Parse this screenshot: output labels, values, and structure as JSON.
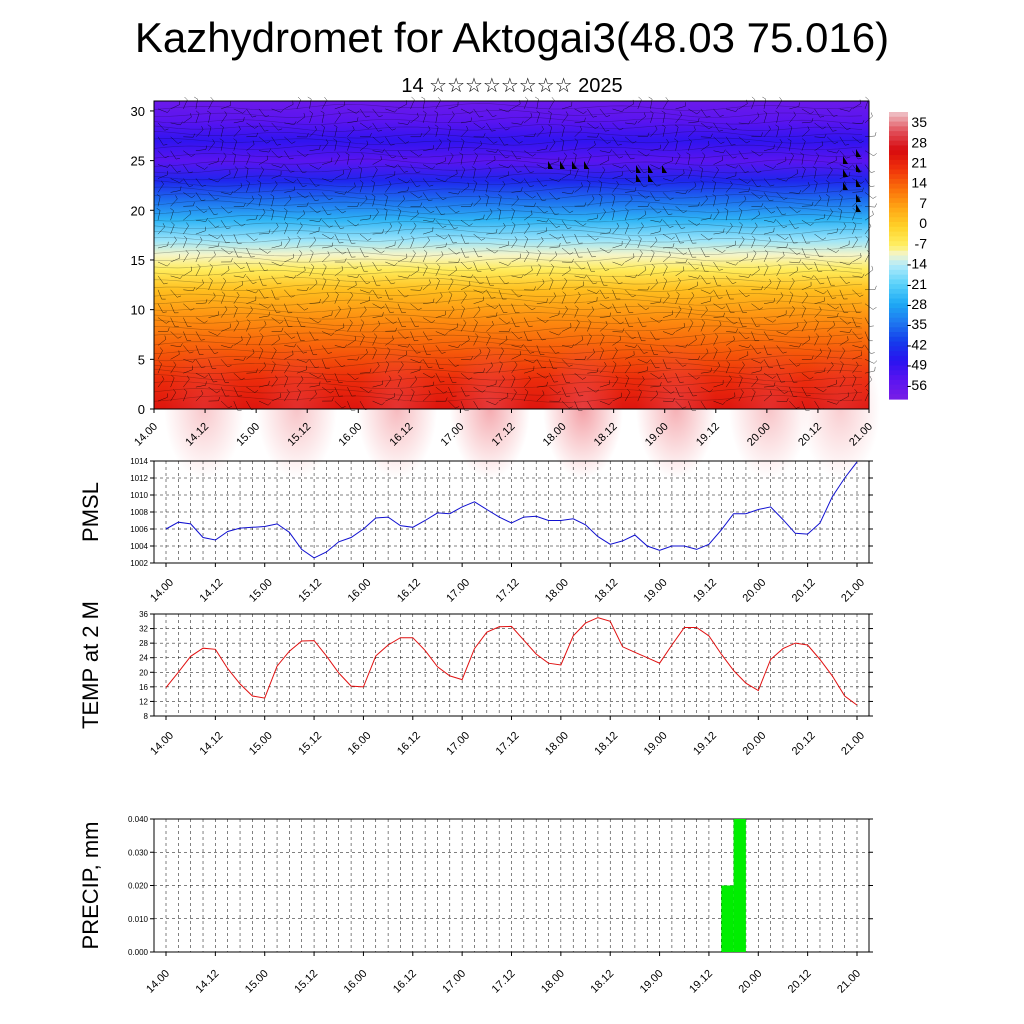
{
  "title": "Kazhydromet for Aktogai3(48.03 75.016)",
  "subtitle": "14 ☆☆☆☆☆☆☆☆ 2025",
  "colors": {
    "pmsl": "#1010d0",
    "temp": "#e01010",
    "precip": "#00ee00"
  },
  "chart_data": [
    {
      "type": "heatmap",
      "name": "cross-section",
      "xlabel": "",
      "ylabel": "",
      "x_ticks": [
        "14.00",
        "14.12",
        "15.00",
        "15.12",
        "16.00",
        "16.12",
        "17.00",
        "17.12",
        "18.00",
        "18.12",
        "19.00",
        "19.12",
        "20.00",
        "20.12",
        "21.00"
      ],
      "y_ticks": [
        0,
        5,
        10,
        15,
        20,
        25,
        30
      ],
      "ylim": [
        0,
        31
      ],
      "colorbar_labels": [
        "35",
        "28",
        "21",
        "14",
        "7",
        "0",
        "-7",
        "-14",
        "-21",
        "-28",
        "-35",
        "-42",
        "-49",
        "-56"
      ],
      "colorbar_range": [
        -63,
        42
      ],
      "overlay": "wind barbs"
    },
    {
      "type": "line",
      "name": "pmsl",
      "ylabel": "PMSL",
      "x_ticks": [
        "14.00",
        "14.12",
        "15.00",
        "15.12",
        "16.00",
        "16.12",
        "17.00",
        "17.12",
        "18.00",
        "18.12",
        "19.00",
        "19.12",
        "20.00",
        "20.12",
        "21.00"
      ],
      "y_ticks": [
        1002,
        1004,
        1006,
        1008,
        1010,
        1012,
        1014
      ],
      "ylim": [
        1002,
        1014
      ],
      "values": [
        1006.0,
        1006.8,
        1006.6,
        1005.0,
        1004.7,
        1005.7,
        1006.1,
        1006.2,
        1006.3,
        1006.6,
        1005.6,
        1003.6,
        1002.6,
        1003.3,
        1004.5,
        1005.0,
        1006.0,
        1007.3,
        1007.4,
        1006.4,
        1006.2,
        1007.0,
        1007.9,
        1007.8,
        1008.6,
        1009.2,
        1008.3,
        1007.4,
        1006.7,
        1007.4,
        1007.5,
        1007.0,
        1007.0,
        1007.2,
        1006.5,
        1005.1,
        1004.2,
        1004.6,
        1005.3,
        1004.0,
        1003.5,
        1004.0,
        1004.0,
        1003.6,
        1004.2,
        1005.9,
        1007.8,
        1007.8,
        1008.3,
        1008.6,
        1007.1,
        1005.5,
        1005.4,
        1006.7,
        1009.8,
        1012.0,
        1013.9
      ]
    },
    {
      "type": "line",
      "name": "temp",
      "ylabel": "TEMP at 2 M",
      "x_ticks": [
        "14.00",
        "14.12",
        "15.00",
        "15.12",
        "16.00",
        "16.12",
        "17.00",
        "17.12",
        "18.00",
        "18.12",
        "19.00",
        "19.12",
        "20.00",
        "20.12",
        "21.00"
      ],
      "y_ticks": [
        8,
        12,
        16,
        20,
        24,
        28,
        32,
        36
      ],
      "ylim": [
        8,
        36
      ],
      "values": [
        15.8,
        20.0,
        24.4,
        26.6,
        26.3,
        21.0,
        16.8,
        13.5,
        12.9,
        21.7,
        25.8,
        28.6,
        28.7,
        24.5,
        19.8,
        16.2,
        16.0,
        24.5,
        27.5,
        29.5,
        29.5,
        26.0,
        21.5,
        19.0,
        18.0,
        26.5,
        31.0,
        32.5,
        32.6,
        28.8,
        25.0,
        22.5,
        22.0,
        30.0,
        33.5,
        35.0,
        34.0,
        27.0,
        25.5,
        24.0,
        22.5,
        27.5,
        32.3,
        32.3,
        30.0,
        25.0,
        20.5,
        17.0,
        15.0,
        23.5,
        26.5,
        28.0,
        27.5,
        23.5,
        19.0,
        13.5,
        11.0
      ]
    },
    {
      "type": "bar",
      "name": "precip",
      "ylabel": "PRECIP, mm",
      "x_ticks": [
        "14.00",
        "14.12",
        "15.00",
        "15.12",
        "16.00",
        "16.12",
        "17.00",
        "17.12",
        "18.00",
        "18.12",
        "19.00",
        "19.12",
        "20.00",
        "20.12",
        "21.00"
      ],
      "y_ticks": [
        "0.000",
        "0.010",
        "0.020",
        "0.030",
        "0.040"
      ],
      "ylim": [
        0,
        0.04
      ],
      "bars": [
        {
          "start_step": 45,
          "end_step": 46,
          "value": 0.02
        },
        {
          "start_step": 46,
          "end_step": 47,
          "value": 0.04
        }
      ]
    }
  ]
}
